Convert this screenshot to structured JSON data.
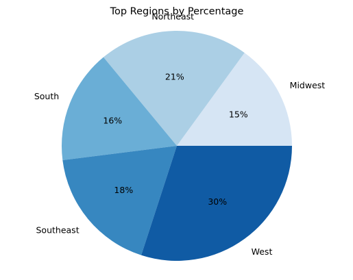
{
  "chart_data": {
    "type": "pie",
    "title": "Top Regions by Percentage",
    "start_angle_deg": 0,
    "direction": "counterclockwise",
    "slices": [
      {
        "label": "Midwest",
        "value": 15,
        "pct_label": "15%",
        "color": "#d6e5f4"
      },
      {
        "label": "Northeast",
        "value": 21,
        "pct_label": "21%",
        "color": "#abcfe5"
      },
      {
        "label": "South",
        "value": 16,
        "pct_label": "16%",
        "color": "#6aaed6"
      },
      {
        "label": "Southeast",
        "value": 18,
        "pct_label": "18%",
        "color": "#3787c0"
      },
      {
        "label": "West",
        "value": 30,
        "pct_label": "30%",
        "color": "#105ba4"
      }
    ]
  }
}
